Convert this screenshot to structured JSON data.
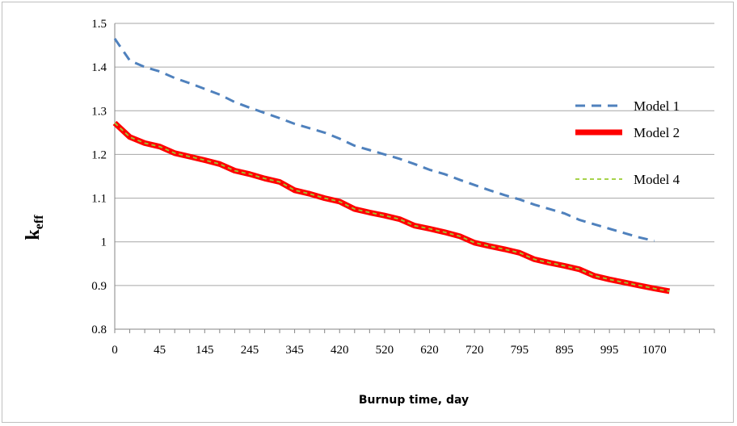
{
  "chart_data": {
    "type": "line",
    "xlabel": "Burnup time, day",
    "ylabel_main": "k",
    "ylabel_sub": "eff",
    "ylim": [
      0.8,
      1.5
    ],
    "yticks": [
      "1.5",
      "1.4",
      "1.3",
      "1.2",
      "1.1",
      "1",
      "0.9",
      "0.8"
    ],
    "ytick_values": [
      1.5,
      1.4,
      1.3,
      1.2,
      1.1,
      1.0,
      0.9,
      0.8
    ],
    "xtick_labels": [
      "0",
      "45",
      "145",
      "245",
      "345",
      "420",
      "520",
      "620",
      "720",
      "795",
      "895",
      "995",
      "1070"
    ],
    "grid": "horizontal",
    "legend_position": "right",
    "series": [
      {
        "name": "Model 1",
        "color": "#4f81bd",
        "style": "dashed",
        "values": [
          1.465,
          1.415,
          1.4,
          1.39,
          1.375,
          1.363,
          1.35,
          1.337,
          1.32,
          1.307,
          1.295,
          1.283,
          1.27,
          1.26,
          1.25,
          1.236,
          1.22,
          1.21,
          1.2,
          1.19,
          1.178,
          1.165,
          1.155,
          1.142,
          1.13,
          1.118,
          1.107,
          1.097,
          1.085,
          1.075,
          1.065,
          1.05,
          1.04,
          1.03,
          1.02,
          1.01,
          1.002
        ]
      },
      {
        "name": "Model 2",
        "color": "#ff0000",
        "style": "thick",
        "values": [
          1.272,
          1.24,
          1.226,
          1.218,
          1.203,
          1.195,
          1.187,
          1.178,
          1.163,
          1.155,
          1.145,
          1.137,
          1.118,
          1.11,
          1.1,
          1.092,
          1.075,
          1.067,
          1.06,
          1.052,
          1.037,
          1.03,
          1.022,
          1.013,
          0.998,
          0.99,
          0.983,
          0.975,
          0.96,
          0.952,
          0.945,
          0.937,
          0.922,
          0.914,
          0.907,
          0.9,
          0.893,
          0.887
        ]
      },
      {
        "name": "Model 4",
        "color": "#9acd32",
        "style": "dashed-thin",
        "values": [
          1.272,
          1.24,
          1.226,
          1.218,
          1.203,
          1.195,
          1.187,
          1.178,
          1.163,
          1.155,
          1.145,
          1.137,
          1.118,
          1.11,
          1.1,
          1.092,
          1.075,
          1.067,
          1.06,
          1.052,
          1.037,
          1.03,
          1.022,
          1.013,
          0.998,
          0.99,
          0.983,
          0.975,
          0.96,
          0.952,
          0.945,
          0.937,
          0.922,
          0.914,
          0.907,
          0.9,
          0.893,
          0.887
        ]
      }
    ]
  }
}
